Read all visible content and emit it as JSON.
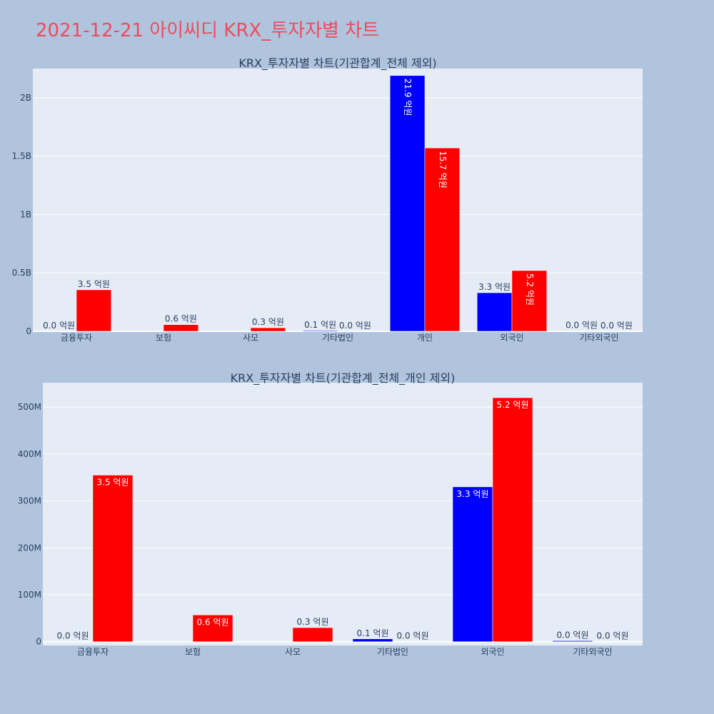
{
  "page": {
    "title": "2021-12-21 아이씨디 KRX_투자자별 차트"
  },
  "colors": {
    "series_buy": "#0000ff",
    "series_sell": "#ff0000",
    "plot_bg": "#e5ecf6",
    "page_bg": "#b0c4de",
    "title": "#ef4b5b"
  },
  "chart_data": [
    {
      "type": "bar",
      "title": "KRX_투자자별 차트(기관합계_전체 제외)",
      "categories": [
        "금융투자",
        "보험",
        "사모",
        "기타법인",
        "개인",
        "외국인",
        "기타외국인"
      ],
      "series": [
        {
          "color": "#0000ff",
          "values": [
            0,
            null,
            null,
            6000000,
            2190000000,
            330000000,
            2000000
          ],
          "labels": [
            "0.0 억원",
            "",
            "",
            "0.1 억원",
            "21.9 억원",
            "3.3 억원",
            "0.0 억원"
          ]
        },
        {
          "color": "#ff0000",
          "values": [
            355000000,
            57000000,
            30000000,
            0,
            1570000000,
            520000000,
            0
          ],
          "labels": [
            "3.5 억원",
            "0.6 억원",
            "0.3 억원",
            "0.0 억원",
            "15.7 억원",
            "5.2 억원",
            "0.0 억원"
          ]
        }
      ],
      "ylim": [
        0,
        2250000000
      ],
      "yticks": [
        0,
        500000000,
        1000000000,
        1500000000,
        2000000000
      ],
      "ytick_labels": [
        "0",
        "0.5B",
        "1B",
        "1.5B",
        "2B"
      ],
      "grid": true
    },
    {
      "type": "bar",
      "title": "KRX_투자자별 차트(기관합계_전체_개인 제외)",
      "categories": [
        "금융투자",
        "보험",
        "사모",
        "기타법인",
        "외국인",
        "기타외국인"
      ],
      "series": [
        {
          "color": "#0000ff",
          "values": [
            0,
            null,
            null,
            6000000,
            330000000,
            2000000
          ],
          "labels": [
            "0.0 억원",
            "",
            "",
            "0.1 억원",
            "3.3 억원",
            "0.0 억원"
          ]
        },
        {
          "color": "#ff0000",
          "values": [
            355000000,
            57000000,
            30000000,
            0,
            520000000,
            0
          ],
          "labels": [
            "3.5 억원",
            "0.6 억원",
            "0.3 억원",
            "0.0 억원",
            "5.2 억원",
            "0.0 억원"
          ]
        }
      ],
      "ylim": [
        -8000000,
        552000000
      ],
      "yticks": [
        0,
        100000000,
        200000000,
        300000000,
        400000000,
        500000000
      ],
      "ytick_labels": [
        "0",
        "100M",
        "200M",
        "300M",
        "400M",
        "500M"
      ],
      "grid": true
    }
  ]
}
